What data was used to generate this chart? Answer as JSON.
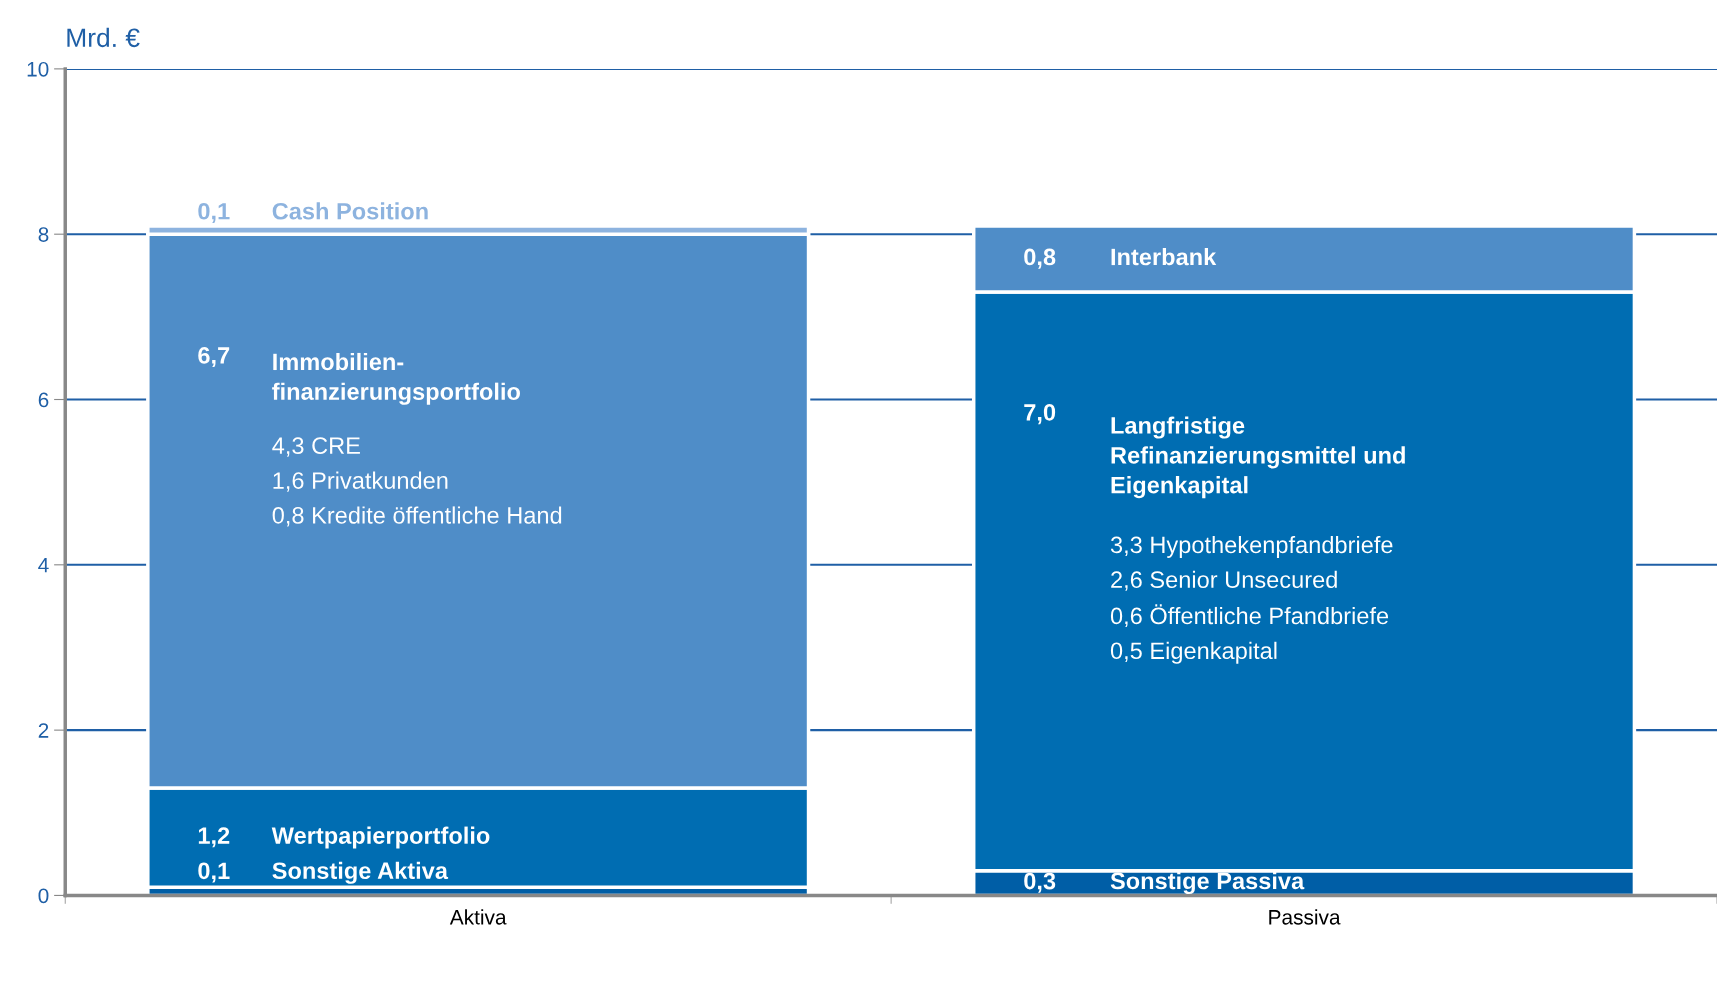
{
  "chart_data": {
    "type": "bar",
    "stacked": true,
    "ylabel": "Mrd. €",
    "categories": [
      "Aktiva",
      "Passiva"
    ],
    "series": [
      {
        "name": "Sonstige Aktiva",
        "color": "#005ea6",
        "values": [
          0.1,
          null
        ],
        "value_labels": [
          "0,1",
          null
        ]
      },
      {
        "name": "Sonstige Passiva",
        "color": "#005ea6",
        "values": [
          null,
          0.3
        ],
        "value_labels": [
          null,
          "0,3"
        ]
      },
      {
        "name": "Wertpapierportfolio",
        "color": "#006db2",
        "values": [
          1.2,
          null
        ],
        "value_labels": [
          "1,2",
          null
        ]
      },
      {
        "name": "Langfristige\nRefinanzierungsmittel und\nEigenkapital",
        "color": "#006db2",
        "values": [
          null,
          7.0
        ],
        "value_labels": [
          null,
          "7,0"
        ]
      },
      {
        "name": "Immobilien-\nfinanzierungsportfolio",
        "color": "#4f8dc8",
        "values": [
          6.7,
          null
        ],
        "value_labels": [
          "6,7",
          null
        ]
      },
      {
        "name": "Interbank",
        "color": "#4f8dc8",
        "values": [
          null,
          0.8
        ],
        "value_labels": [
          null,
          "0,8"
        ]
      },
      {
        "name": "Cash Position",
        "color": "#8db3df",
        "values": [
          0.1,
          null
        ],
        "value_labels": [
          "0,1",
          null
        ]
      }
    ],
    "annotations": [
      "4,3 CRE\n1,6 Privatkunden\n0,8 Kredite öffentliche Hand",
      "3,3 Hypothekenpfandbriefe\n2,6 Senior Unsecured\n0,6 Öffentliche Pfandbriefe\n0,5 Eigenkapital"
    ],
    "ylim": [
      0,
      10
    ],
    "yticks": [
      0,
      2,
      4,
      6,
      8,
      10
    ],
    "grid": "y",
    "legend": false
  }
}
